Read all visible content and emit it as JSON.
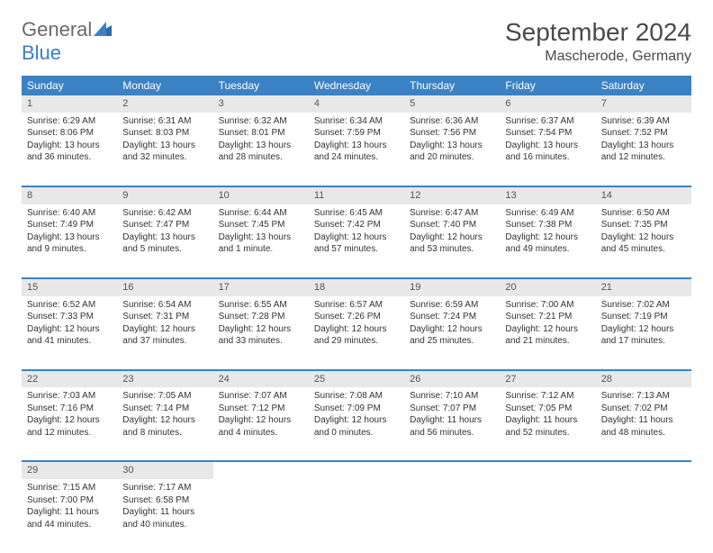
{
  "logo": {
    "word1": "General",
    "word2": "Blue"
  },
  "title": "September 2024",
  "location": "Mascherode, Germany",
  "colors": {
    "header_bg": "#3b82c4",
    "header_text": "#ffffff",
    "daynum_bg": "#e8e8e8",
    "border": "#3b82c4",
    "body_text": "#333333",
    "logo_gray": "#6a6a6a",
    "logo_blue": "#3b7fc4"
  },
  "weekdays": [
    "Sunday",
    "Monday",
    "Tuesday",
    "Wednesday",
    "Thursday",
    "Friday",
    "Saturday"
  ],
  "weeks": [
    [
      {
        "n": "1",
        "sr": "6:29 AM",
        "ss": "8:06 PM",
        "dl": "13 hours and 36 minutes."
      },
      {
        "n": "2",
        "sr": "6:31 AM",
        "ss": "8:03 PM",
        "dl": "13 hours and 32 minutes."
      },
      {
        "n": "3",
        "sr": "6:32 AM",
        "ss": "8:01 PM",
        "dl": "13 hours and 28 minutes."
      },
      {
        "n": "4",
        "sr": "6:34 AM",
        "ss": "7:59 PM",
        "dl": "13 hours and 24 minutes."
      },
      {
        "n": "5",
        "sr": "6:36 AM",
        "ss": "7:56 PM",
        "dl": "13 hours and 20 minutes."
      },
      {
        "n": "6",
        "sr": "6:37 AM",
        "ss": "7:54 PM",
        "dl": "13 hours and 16 minutes."
      },
      {
        "n": "7",
        "sr": "6:39 AM",
        "ss": "7:52 PM",
        "dl": "13 hours and 12 minutes."
      }
    ],
    [
      {
        "n": "8",
        "sr": "6:40 AM",
        "ss": "7:49 PM",
        "dl": "13 hours and 9 minutes."
      },
      {
        "n": "9",
        "sr": "6:42 AM",
        "ss": "7:47 PM",
        "dl": "13 hours and 5 minutes."
      },
      {
        "n": "10",
        "sr": "6:44 AM",
        "ss": "7:45 PM",
        "dl": "13 hours and 1 minute."
      },
      {
        "n": "11",
        "sr": "6:45 AM",
        "ss": "7:42 PM",
        "dl": "12 hours and 57 minutes."
      },
      {
        "n": "12",
        "sr": "6:47 AM",
        "ss": "7:40 PM",
        "dl": "12 hours and 53 minutes."
      },
      {
        "n": "13",
        "sr": "6:49 AM",
        "ss": "7:38 PM",
        "dl": "12 hours and 49 minutes."
      },
      {
        "n": "14",
        "sr": "6:50 AM",
        "ss": "7:35 PM",
        "dl": "12 hours and 45 minutes."
      }
    ],
    [
      {
        "n": "15",
        "sr": "6:52 AM",
        "ss": "7:33 PM",
        "dl": "12 hours and 41 minutes."
      },
      {
        "n": "16",
        "sr": "6:54 AM",
        "ss": "7:31 PM",
        "dl": "12 hours and 37 minutes."
      },
      {
        "n": "17",
        "sr": "6:55 AM",
        "ss": "7:28 PM",
        "dl": "12 hours and 33 minutes."
      },
      {
        "n": "18",
        "sr": "6:57 AM",
        "ss": "7:26 PM",
        "dl": "12 hours and 29 minutes."
      },
      {
        "n": "19",
        "sr": "6:59 AM",
        "ss": "7:24 PM",
        "dl": "12 hours and 25 minutes."
      },
      {
        "n": "20",
        "sr": "7:00 AM",
        "ss": "7:21 PM",
        "dl": "12 hours and 21 minutes."
      },
      {
        "n": "21",
        "sr": "7:02 AM",
        "ss": "7:19 PM",
        "dl": "12 hours and 17 minutes."
      }
    ],
    [
      {
        "n": "22",
        "sr": "7:03 AM",
        "ss": "7:16 PM",
        "dl": "12 hours and 12 minutes."
      },
      {
        "n": "23",
        "sr": "7:05 AM",
        "ss": "7:14 PM",
        "dl": "12 hours and 8 minutes."
      },
      {
        "n": "24",
        "sr": "7:07 AM",
        "ss": "7:12 PM",
        "dl": "12 hours and 4 minutes."
      },
      {
        "n": "25",
        "sr": "7:08 AM",
        "ss": "7:09 PM",
        "dl": "12 hours and 0 minutes."
      },
      {
        "n": "26",
        "sr": "7:10 AM",
        "ss": "7:07 PM",
        "dl": "11 hours and 56 minutes."
      },
      {
        "n": "27",
        "sr": "7:12 AM",
        "ss": "7:05 PM",
        "dl": "11 hours and 52 minutes."
      },
      {
        "n": "28",
        "sr": "7:13 AM",
        "ss": "7:02 PM",
        "dl": "11 hours and 48 minutes."
      }
    ],
    [
      {
        "n": "29",
        "sr": "7:15 AM",
        "ss": "7:00 PM",
        "dl": "11 hours and 44 minutes."
      },
      {
        "n": "30",
        "sr": "7:17 AM",
        "ss": "6:58 PM",
        "dl": "11 hours and 40 minutes."
      },
      null,
      null,
      null,
      null,
      null
    ]
  ],
  "labels": {
    "sunrise": "Sunrise: ",
    "sunset": "Sunset: ",
    "daylight": "Daylight: "
  }
}
